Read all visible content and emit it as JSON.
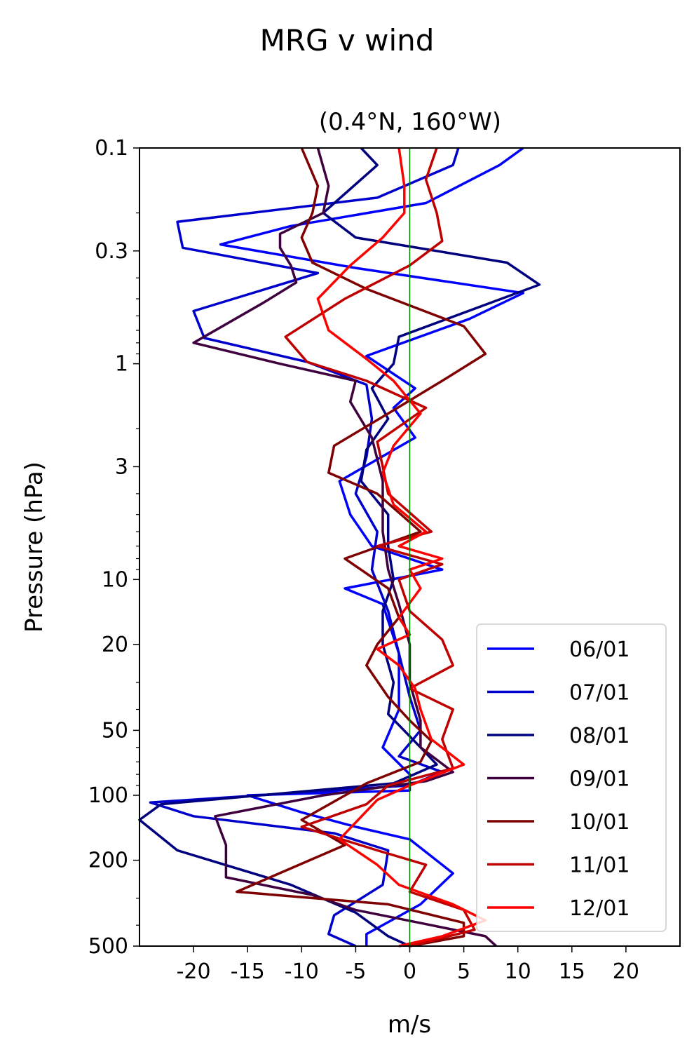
{
  "chart_data": {
    "type": "line",
    "title": "MRG v wind",
    "subtitle": "(0.4°N, 160°W)",
    "xlabel": "m/s",
    "ylabel": "Pressure (hPa)",
    "xlim": [
      -25,
      25
    ],
    "ylim": [
      500,
      0.1
    ],
    "yscale": "log",
    "x_ticks": [
      -20,
      -15,
      -10,
      -5,
      0,
      5,
      10,
      15,
      20
    ],
    "x_tick_labels": [
      "-20",
      "-15",
      "-10",
      "-5",
      "0",
      "5",
      "10",
      "15",
      "20"
    ],
    "y_ticks": [
      0.1,
      0.3,
      1,
      3,
      10,
      20,
      50,
      100,
      200,
      500
    ],
    "y_tick_labels": [
      "0.1",
      "0.3",
      "1",
      "3",
      "10",
      "20",
      "50",
      "100",
      "200",
      "500"
    ],
    "reference_line": {
      "x": 0,
      "color": "#008000"
    },
    "legend_position": "lower-right",
    "series": [
      {
        "name": "06/01",
        "color": "#0000ff",
        "points": [
          [
            10.5,
            0.1
          ],
          [
            8.3,
            0.12
          ],
          [
            1.5,
            0.18
          ],
          [
            -11,
            0.23
          ],
          [
            -17.5,
            0.28
          ],
          [
            -5,
            0.36
          ],
          [
            10.5,
            0.47
          ],
          [
            5.5,
            0.62
          ],
          [
            -4,
            0.92
          ],
          [
            0.5,
            1.3
          ],
          [
            -1.5,
            1.6
          ],
          [
            0.5,
            2.2
          ],
          [
            -6.5,
            3.5
          ],
          [
            -5.5,
            5
          ],
          [
            -3.5,
            7
          ],
          [
            3,
            9
          ],
          [
            -6,
            11
          ],
          [
            -2.5,
            13
          ],
          [
            -1,
            22
          ],
          [
            -1,
            40
          ],
          [
            -2.5,
            60
          ],
          [
            0,
            80
          ],
          [
            0,
            95
          ],
          [
            -15,
            100
          ],
          [
            -10,
            120
          ],
          [
            -5,
            140
          ],
          [
            0,
            160
          ],
          [
            4,
            230
          ],
          [
            1,
            320
          ],
          [
            -4,
            440
          ],
          [
            -4,
            500
          ]
        ]
      },
      {
        "name": "07/01",
        "color": "#0000cc",
        "points": [
          [
            4.5,
            0.1
          ],
          [
            4,
            0.12
          ],
          [
            -3,
            0.17
          ],
          [
            -21.5,
            0.22
          ],
          [
            -21,
            0.29
          ],
          [
            -8.5,
            0.38
          ],
          [
            -20,
            0.57
          ],
          [
            -19,
            0.76
          ],
          [
            -9.5,
            0.98
          ],
          [
            -4,
            1.25
          ],
          [
            -3.5,
            1.8
          ],
          [
            -4,
            2.7
          ],
          [
            -5,
            4
          ],
          [
            -3,
            6
          ],
          [
            -3.5,
            9
          ],
          [
            -2,
            14
          ],
          [
            -1,
            22
          ],
          [
            0,
            35
          ],
          [
            1,
            50
          ],
          [
            -1,
            66
          ],
          [
            3,
            78
          ],
          [
            0,
            90
          ],
          [
            -24,
            108
          ],
          [
            -20,
            125
          ],
          [
            -7,
            150
          ],
          [
            -2,
            180
          ],
          [
            -2.5,
            260
          ],
          [
            -7,
            360
          ],
          [
            -7.5,
            440
          ],
          [
            -5,
            500
          ]
        ]
      },
      {
        "name": "08/01",
        "color": "#00007f",
        "points": [
          [
            -4.5,
            0.1
          ],
          [
            -3,
            0.12
          ],
          [
            -8,
            0.2
          ],
          [
            -5,
            0.26
          ],
          [
            9,
            0.34
          ],
          [
            12,
            0.43
          ],
          [
            -1,
            0.75
          ],
          [
            -1.5,
            1
          ],
          [
            -3.5,
            1.3
          ],
          [
            -2,
            1.8
          ],
          [
            -4,
            2.5
          ],
          [
            -4.5,
            3.5
          ],
          [
            -2,
            5
          ],
          [
            -2,
            7
          ],
          [
            -1.5,
            10
          ],
          [
            -2.5,
            14
          ],
          [
            -2.5,
            20
          ],
          [
            -1.5,
            30
          ],
          [
            -2,
            42
          ],
          [
            1,
            60
          ],
          [
            2.5,
            72
          ],
          [
            -1.5,
            88
          ],
          [
            -23,
            110
          ],
          [
            -25,
            130
          ],
          [
            -21.5,
            180
          ],
          [
            -11,
            260
          ],
          [
            -5,
            350
          ],
          [
            -2,
            450
          ],
          [
            0,
            500
          ]
        ]
      },
      {
        "name": "09/01",
        "color": "#3f003f",
        "points": [
          [
            -8.5,
            0.1
          ],
          [
            -7.5,
            0.15
          ],
          [
            -8,
            0.2
          ],
          [
            -12,
            0.25
          ],
          [
            -12,
            0.29
          ],
          [
            -11,
            0.35
          ],
          [
            -10.5,
            0.42
          ],
          [
            -13.5,
            0.52
          ],
          [
            -20,
            0.8
          ],
          [
            -12,
            1
          ],
          [
            -5,
            1.2
          ],
          [
            -5.5,
            1.5
          ],
          [
            -3.5,
            2.2
          ],
          [
            -2.5,
            3.5
          ],
          [
            -2.5,
            6
          ],
          [
            -2,
            9
          ],
          [
            -1,
            13
          ],
          [
            0,
            20
          ],
          [
            0,
            30
          ],
          [
            1,
            45
          ],
          [
            1,
            60
          ],
          [
            4,
            78
          ],
          [
            1.5,
            86
          ],
          [
            -8,
            100
          ],
          [
            -18,
            125
          ],
          [
            -17,
            170
          ],
          [
            -17,
            240
          ],
          [
            -9,
            290
          ],
          [
            -5,
            340
          ],
          [
            2,
            400
          ],
          [
            7,
            450
          ],
          [
            8,
            500
          ]
        ]
      },
      {
        "name": "10/01",
        "color": "#7f0000",
        "points": [
          [
            -10,
            0.1
          ],
          [
            -8.5,
            0.15
          ],
          [
            -9,
            0.2
          ],
          [
            -10,
            0.26
          ],
          [
            -9,
            0.34
          ],
          [
            -4,
            0.45
          ],
          [
            5,
            0.67
          ],
          [
            7,
            0.9
          ],
          [
            3,
            1.2
          ],
          [
            -2,
            1.7
          ],
          [
            -7,
            2.4
          ],
          [
            -7.5,
            3.2
          ],
          [
            -3,
            4
          ],
          [
            1,
            6
          ],
          [
            -6,
            8
          ],
          [
            -2,
            11
          ],
          [
            -1,
            15
          ],
          [
            -3,
            20
          ],
          [
            -4,
            25
          ],
          [
            -2,
            35
          ],
          [
            0,
            45
          ],
          [
            2,
            56
          ],
          [
            1,
            70
          ],
          [
            -4,
            88
          ],
          [
            -10,
            130
          ],
          [
            -6,
            170
          ],
          [
            -16,
            280
          ],
          [
            -2,
            320
          ],
          [
            5,
            390
          ],
          [
            5,
            450
          ],
          [
            0,
            500
          ]
        ]
      },
      {
        "name": "11/01",
        "color": "#bf0000",
        "points": [
          [
            2.5,
            0.1
          ],
          [
            1.5,
            0.14
          ],
          [
            2.5,
            0.2
          ],
          [
            3,
            0.27
          ],
          [
            0,
            0.35
          ],
          [
            -6,
            0.5
          ],
          [
            -11.5,
            0.75
          ],
          [
            -9.5,
            0.98
          ],
          [
            -4,
            1.2
          ],
          [
            1.5,
            1.6
          ],
          [
            -3,
            2.3
          ],
          [
            -2.5,
            3
          ],
          [
            -2,
            4
          ],
          [
            2,
            6
          ],
          [
            -3,
            7
          ],
          [
            3,
            8.5
          ],
          [
            -1,
            10
          ],
          [
            0,
            14
          ],
          [
            3,
            19
          ],
          [
            4,
            25
          ],
          [
            0,
            32
          ],
          [
            4,
            40
          ],
          [
            3,
            55
          ],
          [
            4,
            75
          ],
          [
            -2,
            90
          ],
          [
            -4,
            110
          ],
          [
            -10,
            140
          ],
          [
            -3,
            180
          ],
          [
            1.5,
            210
          ],
          [
            0,
            280
          ],
          [
            5,
            340
          ],
          [
            6,
            420
          ],
          [
            0,
            500
          ]
        ]
      },
      {
        "name": "12/01",
        "color": "#ff0000",
        "points": [
          [
            -1,
            0.1
          ],
          [
            -0.5,
            0.15
          ],
          [
            -0.5,
            0.2
          ],
          [
            -2.5,
            0.26
          ],
          [
            -5.5,
            0.35
          ],
          [
            -8.5,
            0.5
          ],
          [
            -7.5,
            0.7
          ],
          [
            -4,
            0.95
          ],
          [
            -1.5,
            1.2
          ],
          [
            1,
            1.7
          ],
          [
            -1.5,
            2.4
          ],
          [
            -2.5,
            3.2
          ],
          [
            -1.5,
            4.5
          ],
          [
            1.5,
            6
          ],
          [
            -1,
            7
          ],
          [
            3,
            8
          ],
          [
            0,
            9
          ],
          [
            1,
            11
          ],
          [
            -1,
            15
          ],
          [
            0,
            18
          ],
          [
            -3,
            21
          ],
          [
            -1,
            25
          ],
          [
            0.5,
            32
          ],
          [
            1,
            40
          ],
          [
            2,
            55
          ],
          [
            5,
            72
          ],
          [
            0,
            90
          ],
          [
            -3,
            105
          ],
          [
            -6.5,
            160
          ],
          [
            -3,
            210
          ],
          [
            -1,
            260
          ],
          [
            4,
            320
          ],
          [
            7,
            380
          ],
          [
            3,
            450
          ],
          [
            -1,
            500
          ]
        ]
      }
    ]
  }
}
